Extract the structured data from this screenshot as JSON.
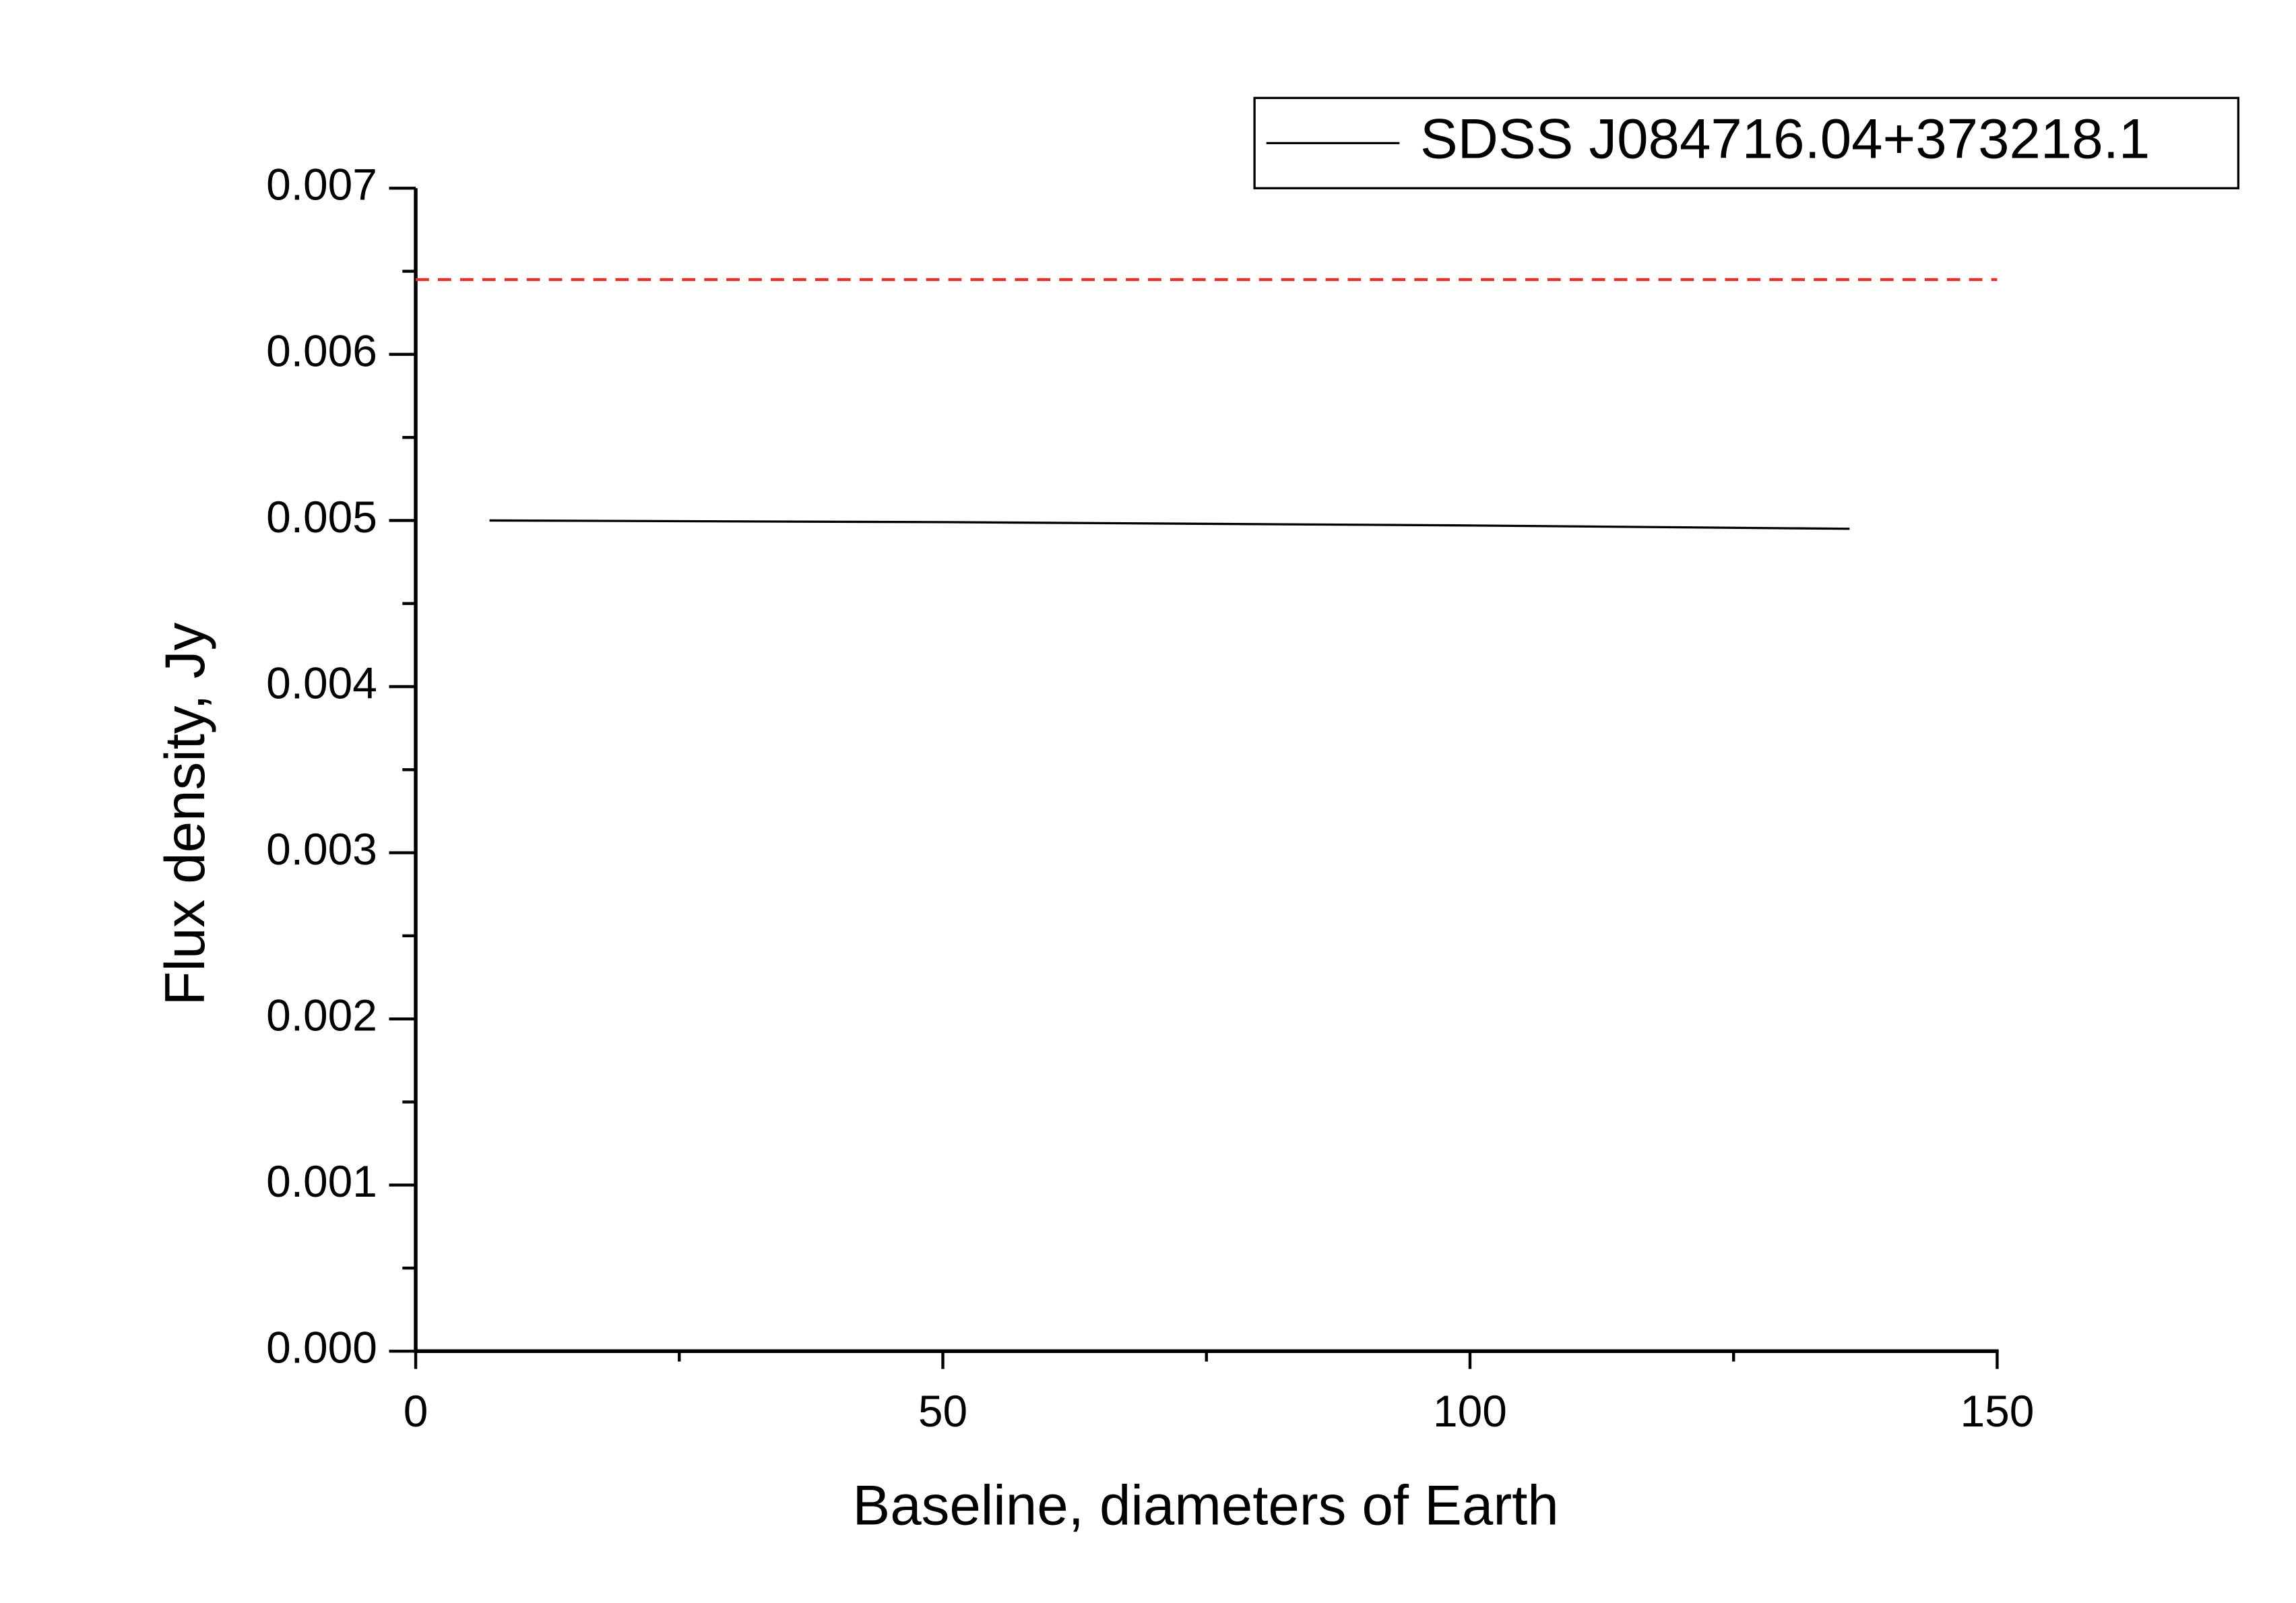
{
  "chart_data": {
    "type": "line",
    "xlabel": "Baseline, diameters of Earth",
    "ylabel": "Flux density, Jy",
    "series": [
      {
        "name": "SDSS J084716.04+373218.1",
        "color": "#000000",
        "x": [
          7,
          50,
          100,
          136
        ],
        "values": [
          0.005,
          0.00499,
          0.00497,
          0.00495
        ]
      }
    ],
    "reference_line": {
      "y": 0.00645,
      "color": "#e8302a",
      "dashed": true
    },
    "xlim": [
      0,
      150
    ],
    "xticks": [
      0,
      50,
      100,
      150
    ],
    "xminorticks": [
      25,
      75,
      125
    ],
    "ylim": [
      0,
      0.007
    ],
    "yticks": [
      {
        "value": 0,
        "label": "0.000"
      },
      0.001,
      0.002,
      0.003,
      0.004,
      0.005,
      0.006,
      0.007
    ],
    "yminorticks": [
      0.0005,
      0.0015,
      0.0025,
      0.0035,
      0.0045,
      0.0055,
      0.0065
    ],
    "legend": "upper right",
    "grid": false
  }
}
